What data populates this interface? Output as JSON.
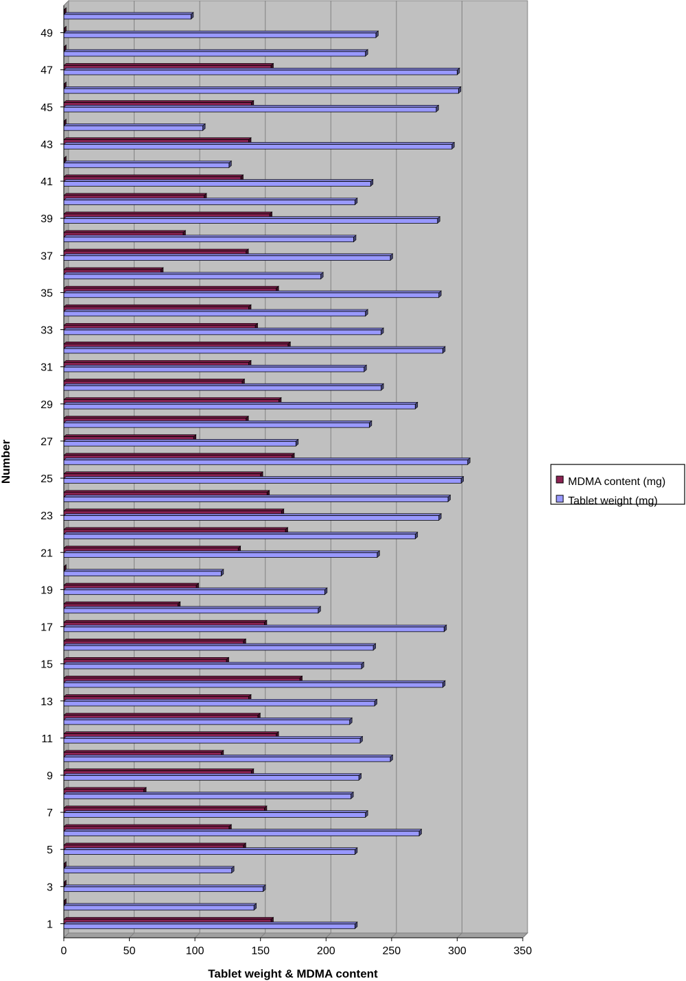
{
  "chart_data": {
    "type": "bar",
    "orientation": "horizontal",
    "style": "3d",
    "title": "",
    "xlabel": "Tablet weight & MDMA content",
    "ylabel": "Number",
    "xlim": [
      0,
      350
    ],
    "x_ticks": [
      0,
      50,
      100,
      150,
      200,
      250,
      300,
      350
    ],
    "y_tick_labels": [
      "1",
      "3",
      "5",
      "7",
      "9",
      "11",
      "13",
      "15",
      "17",
      "19",
      "21",
      "23",
      "25",
      "27",
      "29",
      "31",
      "33",
      "35",
      "37",
      "39",
      "41",
      "43",
      "45",
      "47",
      "49"
    ],
    "categories": [
      1,
      2,
      3,
      4,
      5,
      6,
      7,
      8,
      9,
      10,
      11,
      12,
      13,
      14,
      15,
      16,
      17,
      18,
      19,
      20,
      21,
      22,
      23,
      24,
      25,
      26,
      27,
      28,
      29,
      30,
      31,
      32,
      33,
      34,
      35,
      36,
      37,
      38,
      39,
      40,
      41,
      42,
      43,
      44,
      45,
      46,
      47,
      48,
      49,
      50
    ],
    "grid": "vertical",
    "legend_position": "right",
    "plot_background": "#c0c0c0",
    "series": [
      {
        "name": "MDMA content (mg)",
        "color": "#8b2252",
        "values": [
          158,
          0,
          0,
          0,
          137,
          126,
          153,
          61,
          143,
          120,
          162,
          148,
          141,
          180,
          124,
          137,
          153,
          87,
          101,
          0,
          133,
          169,
          166,
          155,
          150,
          174,
          99,
          139,
          164,
          136,
          141,
          171,
          146,
          141,
          162,
          74,
          139,
          91,
          157,
          107,
          135,
          0,
          141,
          0,
          143,
          0,
          158,
          0,
          0,
          0
        ]
      },
      {
        "name": "Tablet weight (mg)",
        "color": "#9999ff",
        "values": [
          222,
          145,
          152,
          128,
          222,
          271,
          230,
          219,
          225,
          249,
          226,
          218,
          237,
          289,
          227,
          236,
          290,
          194,
          199,
          120,
          239,
          268,
          286,
          293,
          303,
          308,
          177,
          233,
          268,
          242,
          229,
          289,
          242,
          230,
          286,
          196,
          249,
          221,
          285,
          222,
          234,
          126,
          296,
          106,
          284,
          301,
          300,
          230,
          238,
          97
        ]
      }
    ]
  }
}
